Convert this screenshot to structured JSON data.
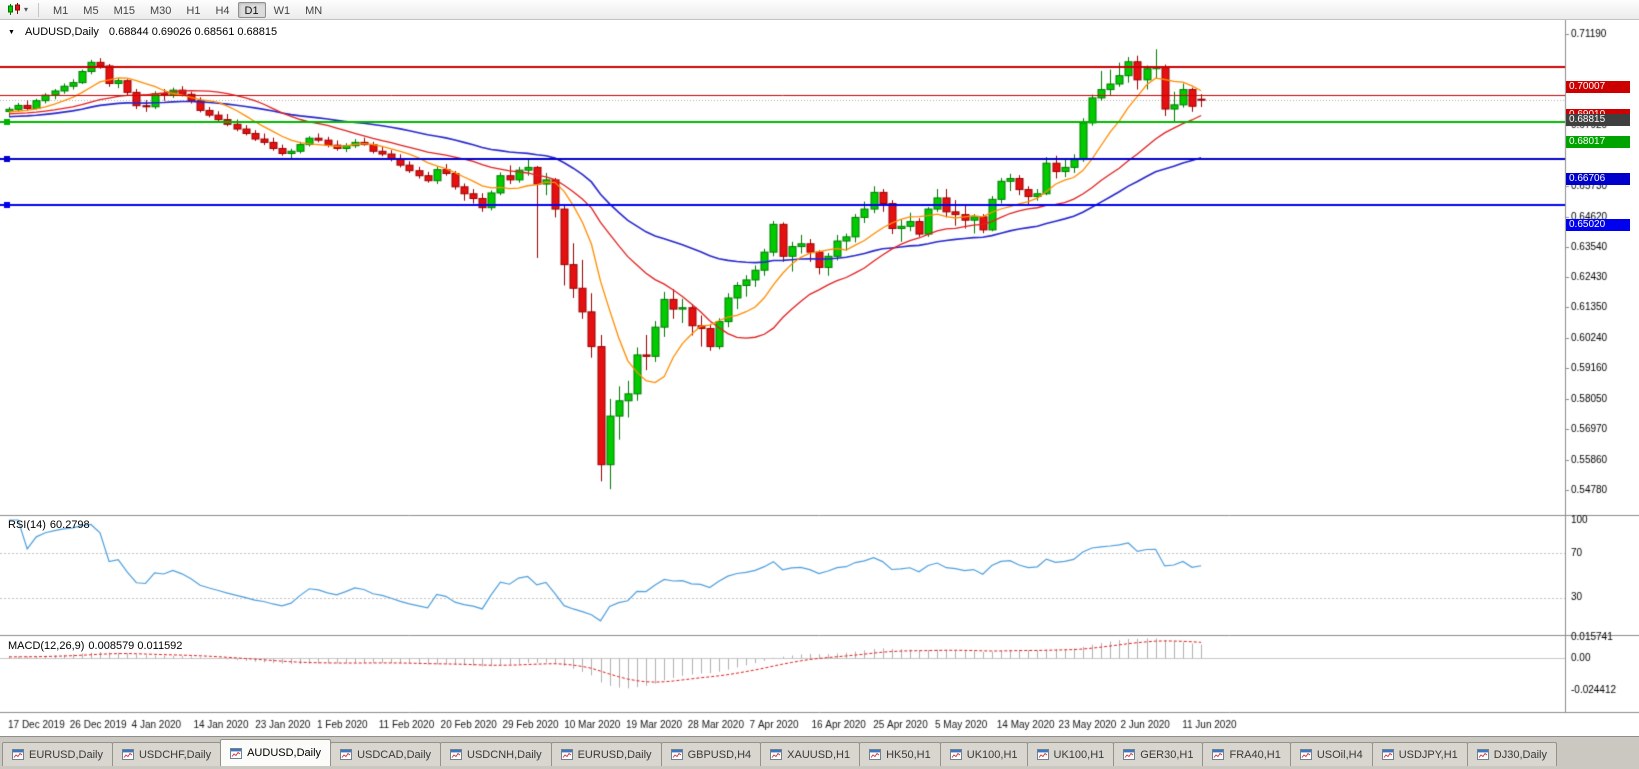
{
  "toolbar": {
    "timeframes": [
      "M1",
      "M5",
      "M15",
      "M30",
      "H1",
      "H4",
      "D1",
      "W1",
      "MN"
    ],
    "active": "D1"
  },
  "chart": {
    "symbol_period": "AUDUSD,Daily",
    "ohlc": "0.68844 0.69026 0.68561 0.68815"
  },
  "indicators": {
    "rsi_name": "RSI(14)",
    "rsi_value": "60.2798",
    "macd_name": "MACD(12,26,9)",
    "macd_value": "0.008579 0.011592"
  },
  "chart_data": {
    "type": "candlestick",
    "symbol": "AUDUSD",
    "period": "Daily",
    "ohlc_current": {
      "open": 0.68844,
      "high": 0.69026,
      "low": 0.68561,
      "close": 0.68815
    },
    "y_range": {
      "max": 0.7119,
      "min": 0.5478
    },
    "y_ticks": [
      0.7119,
      0.6792,
      0.6573,
      0.6462,
      0.6354,
      0.6243,
      0.6135,
      0.6024,
      0.5916,
      0.5805,
      0.5697,
      0.5586,
      0.5478
    ],
    "x_labels": [
      "17 Dec 2019",
      "26 Dec 2019",
      "4 Jan 2020",
      "14 Jan 2020",
      "23 Jan 2020",
      "1 Feb 2020",
      "11 Feb 2020",
      "20 Feb 2020",
      "29 Feb 2020",
      "10 Mar 2020",
      "19 Mar 2020",
      "28 Mar 2020",
      "7 Apr 2020",
      "16 Apr 2020",
      "25 Apr 2020",
      "5 May 2020",
      "14 May 2020",
      "23 May 2020",
      "2 Jun 2020",
      "11 Jun 2020"
    ],
    "levels": [
      {
        "price": 0.70007,
        "color": "#cc0000",
        "label_bg": "#cc0000",
        "width": 2,
        "handle": false
      },
      {
        "price": 0.6901,
        "color": "#cc0000",
        "label_bg": "#cc0000",
        "width": 1,
        "handle": false
      },
      {
        "price": 0.68017,
        "color": "#00b300",
        "label_bg": "#00a300",
        "width": 2,
        "handle": true
      },
      {
        "price": 0.66706,
        "color": "#0000cc",
        "label_bg": "#0000cc",
        "width": 2,
        "handle": true
      },
      {
        "price": 0.6502,
        "color": "#0000ee",
        "label_bg": "#0000ee",
        "width": 2,
        "handle": true
      }
    ],
    "current_price": {
      "value": 0.68815,
      "label_bg": "#3f3f3f"
    },
    "colors": {
      "up_fill": "#00cc00",
      "up_border": "#007a00",
      "down_fill": "#e61010",
      "down_border": "#990000",
      "background": "#ffffff",
      "histogram": "#b0b0b0",
      "signal_line": "#e02020"
    },
    "moving_averages": [
      {
        "type": "ema",
        "period": 45,
        "color": "#2727cc",
        "width": 1.6
      },
      {
        "type": "sma",
        "period": 20,
        "color": "#e02020",
        "width": 1.3
      },
      {
        "type": "sma",
        "period": 8,
        "color": "#ff8c00",
        "width": 1.3
      }
    ],
    "rsi": {
      "period": 14,
      "current": 60.2798,
      "levels": [
        70,
        30
      ],
      "axis_labels": [
        "100",
        "70",
        "30"
      ],
      "color": "#4f9fdc"
    },
    "macd": {
      "fast": 12,
      "slow": 26,
      "signal": 9,
      "current_macd": 0.008579,
      "current_signal": 0.011592,
      "axis_labels": [
        "0.015741",
        "0.00",
        "-0.024412"
      ],
      "axis_max": 0.015741,
      "axis_min": -0.024412
    },
    "candles": [
      [
        0.684,
        0.6856,
        0.6824,
        0.6848
      ],
      [
        0.6848,
        0.6871,
        0.6839,
        0.6862
      ],
      [
        0.6862,
        0.688,
        0.6844,
        0.6851
      ],
      [
        0.6851,
        0.6886,
        0.6847,
        0.6879
      ],
      [
        0.6879,
        0.6906,
        0.6869,
        0.6899
      ],
      [
        0.6899,
        0.6921,
        0.6884,
        0.6914
      ],
      [
        0.6914,
        0.6941,
        0.6904,
        0.6931
      ],
      [
        0.6931,
        0.6956,
        0.6919,
        0.6944
      ],
      [
        0.6944,
        0.6991,
        0.6939,
        0.6984
      ],
      [
        0.6984,
        0.7026,
        0.6974,
        0.7017
      ],
      [
        0.7017,
        0.7032,
        0.6994,
        0.7004
      ],
      [
        0.7004,
        0.7011,
        0.6929,
        0.6941
      ],
      [
        0.6941,
        0.6961,
        0.6924,
        0.6951
      ],
      [
        0.6951,
        0.6956,
        0.6899,
        0.6909
      ],
      [
        0.6909,
        0.6921,
        0.6849,
        0.6861
      ],
      [
        0.6861,
        0.6881,
        0.6839,
        0.6857
      ],
      [
        0.6857,
        0.6913,
        0.6849,
        0.6904
      ],
      [
        0.6904,
        0.6921,
        0.6879,
        0.6899
      ],
      [
        0.6899,
        0.6926,
        0.6889,
        0.6917
      ],
      [
        0.6917,
        0.6931,
        0.6894,
        0.6902
      ],
      [
        0.6902,
        0.6911,
        0.6869,
        0.6879
      ],
      [
        0.6879,
        0.6891,
        0.6837,
        0.6844
      ],
      [
        0.6844,
        0.6856,
        0.6819,
        0.6827
      ],
      [
        0.6827,
        0.6841,
        0.6804,
        0.6811
      ],
      [
        0.6811,
        0.6831,
        0.6787,
        0.6794
      ],
      [
        0.6794,
        0.6811,
        0.6769,
        0.6777
      ],
      [
        0.6777,
        0.6791,
        0.6754,
        0.6761
      ],
      [
        0.6761,
        0.6773,
        0.6734,
        0.6741
      ],
      [
        0.6741,
        0.6761,
        0.6719,
        0.6729
      ],
      [
        0.6729,
        0.6746,
        0.6699,
        0.6707
      ],
      [
        0.6707,
        0.6721,
        0.6681,
        0.6689
      ],
      [
        0.6689,
        0.6706,
        0.6669,
        0.6697
      ],
      [
        0.6697,
        0.6731,
        0.6689,
        0.6721
      ],
      [
        0.6721,
        0.6751,
        0.6714,
        0.6744
      ],
      [
        0.6744,
        0.6761,
        0.6729,
        0.6737
      ],
      [
        0.6737,
        0.6749,
        0.6711,
        0.6719
      ],
      [
        0.6719,
        0.6736,
        0.6699,
        0.6707
      ],
      [
        0.6707,
        0.6726,
        0.6694,
        0.6717
      ],
      [
        0.6717,
        0.6741,
        0.6709,
        0.6729
      ],
      [
        0.6729,
        0.6746,
        0.6717,
        0.6721
      ],
      [
        0.6721,
        0.6731,
        0.6689,
        0.6697
      ],
      [
        0.6697,
        0.6713,
        0.6679,
        0.6687
      ],
      [
        0.6687,
        0.6701,
        0.6661,
        0.6669
      ],
      [
        0.6669,
        0.6686,
        0.6639,
        0.6647
      ],
      [
        0.6647,
        0.6661,
        0.6619,
        0.6627
      ],
      [
        0.6627,
        0.6641,
        0.6599,
        0.6609
      ],
      [
        0.6609,
        0.6623,
        0.6584,
        0.6591
      ],
      [
        0.6591,
        0.6641,
        0.6579,
        0.6631
      ],
      [
        0.6631,
        0.6651,
        0.6609,
        0.6617
      ],
      [
        0.6617,
        0.6626,
        0.6559,
        0.6569
      ],
      [
        0.6569,
        0.6581,
        0.6519,
        0.6544
      ],
      [
        0.6544,
        0.6561,
        0.6509,
        0.6527
      ],
      [
        0.6527,
        0.6546,
        0.6479,
        0.6494
      ],
      [
        0.6494,
        0.6556,
        0.6484,
        0.6547
      ],
      [
        0.6547,
        0.6621,
        0.6539,
        0.6609
      ],
      [
        0.6609,
        0.6646,
        0.6579,
        0.6594
      ],
      [
        0.6594,
        0.6641,
        0.6584,
        0.6629
      ],
      [
        0.6629,
        0.6666,
        0.6609,
        0.6639
      ],
      [
        0.6639,
        0.6644,
        0.6313,
        0.6579
      ],
      [
        0.6579,
        0.6619,
        0.6539,
        0.6594
      ],
      [
        0.6594,
        0.6601,
        0.6459,
        0.6489
      ],
      [
        0.6489,
        0.6501,
        0.6214,
        0.6289
      ],
      [
        0.6289,
        0.6366,
        0.6169,
        0.6204
      ],
      [
        0.6204,
        0.6306,
        0.6094,
        0.6119
      ],
      [
        0.6119,
        0.6186,
        0.5954,
        0.5994
      ],
      [
        0.5994,
        0.6036,
        0.5509,
        0.5569
      ],
      [
        0.5569,
        0.5806,
        0.5481,
        0.5744
      ],
      [
        0.5744,
        0.5851,
        0.5659,
        0.5799
      ],
      [
        0.5799,
        0.5871,
        0.5739,
        0.5824
      ],
      [
        0.5824,
        0.5991,
        0.5799,
        0.5964
      ],
      [
        0.5964,
        0.6036,
        0.5909,
        0.5959
      ],
      [
        0.5959,
        0.6086,
        0.5939,
        0.6064
      ],
      [
        0.6064,
        0.6191,
        0.6029,
        0.6164
      ],
      [
        0.6164,
        0.6201,
        0.6094,
        0.6129
      ],
      [
        0.6129,
        0.6166,
        0.6079,
        0.6134
      ],
      [
        0.6134,
        0.6146,
        0.6034,
        0.6069
      ],
      [
        0.6069,
        0.6106,
        0.5994,
        0.6059
      ],
      [
        0.6059,
        0.6076,
        0.5979,
        0.5994
      ],
      [
        0.5994,
        0.6096,
        0.5984,
        0.6084
      ],
      [
        0.6084,
        0.6186,
        0.6064,
        0.6169
      ],
      [
        0.6169,
        0.6226,
        0.6129,
        0.6214
      ],
      [
        0.6214,
        0.6251,
        0.6174,
        0.6234
      ],
      [
        0.6234,
        0.6286,
        0.6209,
        0.6269
      ],
      [
        0.6269,
        0.6346,
        0.6249,
        0.6334
      ],
      [
        0.6334,
        0.6446,
        0.6319,
        0.6434
      ],
      [
        0.6434,
        0.6441,
        0.6299,
        0.6319
      ],
      [
        0.6319,
        0.6371,
        0.6264,
        0.6354
      ],
      [
        0.6354,
        0.6396,
        0.6329,
        0.6364
      ],
      [
        0.6364,
        0.6381,
        0.6299,
        0.6334
      ],
      [
        0.6334,
        0.6341,
        0.6254,
        0.6279
      ],
      [
        0.6279,
        0.6331,
        0.6249,
        0.6319
      ],
      [
        0.6319,
        0.6396,
        0.6304,
        0.6374
      ],
      [
        0.6374,
        0.6401,
        0.6339,
        0.6389
      ],
      [
        0.6389,
        0.6471,
        0.6369,
        0.6459
      ],
      [
        0.6459,
        0.6516,
        0.6439,
        0.6489
      ],
      [
        0.6489,
        0.6571,
        0.6474,
        0.6549
      ],
      [
        0.6549,
        0.6561,
        0.6479,
        0.6509
      ],
      [
        0.6509,
        0.6521,
        0.6399,
        0.6419
      ],
      [
        0.6419,
        0.6451,
        0.6371,
        0.6427
      ],
      [
        0.6427,
        0.6476,
        0.6409,
        0.6444
      ],
      [
        0.6444,
        0.6456,
        0.6389,
        0.6399
      ],
      [
        0.6399,
        0.6496,
        0.6389,
        0.6489
      ],
      [
        0.6489,
        0.6561,
        0.6479,
        0.6529
      ],
      [
        0.6529,
        0.6561,
        0.6459,
        0.6479
      ],
      [
        0.6479,
        0.6521,
        0.6429,
        0.6469
      ],
      [
        0.6469,
        0.6506,
        0.6419,
        0.6449
      ],
      [
        0.6449,
        0.6471,
        0.6401,
        0.6461
      ],
      [
        0.6461,
        0.6471,
        0.6402,
        0.6414
      ],
      [
        0.6414,
        0.6536,
        0.6409,
        0.6524
      ],
      [
        0.6524,
        0.6601,
        0.6509,
        0.6589
      ],
      [
        0.6589,
        0.6616,
        0.6554,
        0.6599
      ],
      [
        0.6599,
        0.6611,
        0.6539,
        0.6559
      ],
      [
        0.6559,
        0.6571,
        0.6504,
        0.6534
      ],
      [
        0.6534,
        0.6561,
        0.6519,
        0.6544
      ],
      [
        0.6544,
        0.6676,
        0.6539,
        0.6654
      ],
      [
        0.6654,
        0.6681,
        0.6599,
        0.6624
      ],
      [
        0.6624,
        0.6666,
        0.6604,
        0.6639
      ],
      [
        0.6639,
        0.6686,
        0.6619,
        0.6667
      ],
      [
        0.6667,
        0.6816,
        0.6659,
        0.6799
      ],
      [
        0.6799,
        0.6901,
        0.6789,
        0.6889
      ],
      [
        0.6889,
        0.6986,
        0.6879,
        0.6919
      ],
      [
        0.6919,
        0.6991,
        0.6899,
        0.6939
      ],
      [
        0.6939,
        0.7016,
        0.6929,
        0.6969
      ],
      [
        0.6969,
        0.7036,
        0.6944,
        0.7019
      ],
      [
        0.7019,
        0.7041,
        0.6919,
        0.6954
      ],
      [
        0.6954,
        0.7006,
        0.6919,
        0.6994
      ],
      [
        0.6994,
        0.7064,
        0.6959,
        0.6999
      ],
      [
        0.6999,
        0.7009,
        0.6824,
        0.6849
      ],
      [
        0.6849,
        0.6911,
        0.6799,
        0.6864
      ],
      [
        0.6864,
        0.6941,
        0.6854,
        0.6919
      ],
      [
        0.6919,
        0.6926,
        0.6839,
        0.6859
      ],
      [
        0.68844,
        0.69026,
        0.68561,
        0.68815
      ]
    ]
  },
  "tabs": [
    {
      "label": "EURUSD,Daily",
      "active": false
    },
    {
      "label": "USDCHF,Daily",
      "active": false
    },
    {
      "label": "AUDUSD,Daily",
      "active": true
    },
    {
      "label": "USDCAD,Daily",
      "active": false
    },
    {
      "label": "USDCNH,Daily",
      "active": false
    },
    {
      "label": "EURUSD,Daily",
      "active": false
    },
    {
      "label": "GBPUSD,H4",
      "active": false
    },
    {
      "label": "XAUUSD,H1",
      "active": false
    },
    {
      "label": "HK50,H1",
      "active": false
    },
    {
      "label": "UK100,H1",
      "active": false
    },
    {
      "label": "UK100,H1",
      "active": false
    },
    {
      "label": "GER30,H1",
      "active": false
    },
    {
      "label": "FRA40,H1",
      "active": false
    },
    {
      "label": "USOil,H4",
      "active": false
    },
    {
      "label": "USDJPY,H1",
      "active": false
    },
    {
      "label": "DJ30,Daily",
      "active": false
    }
  ]
}
